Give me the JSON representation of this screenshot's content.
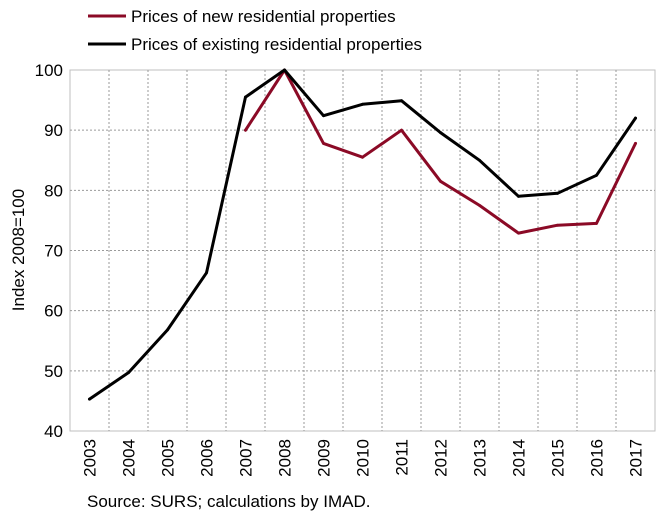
{
  "chart_data": {
    "type": "line",
    "x": [
      "2003",
      "2004",
      "2005",
      "2006",
      "2007",
      "2008",
      "2009",
      "2010",
      "2011",
      "2012",
      "2013",
      "2014",
      "2015",
      "2016",
      "2017"
    ],
    "series": [
      {
        "name": "Prices of new residential properties",
        "color": "#8b0a26",
        "values": [
          null,
          null,
          null,
          null,
          90.0,
          100.0,
          87.8,
          85.5,
          90.0,
          81.5,
          77.5,
          72.9,
          74.2,
          74.5,
          87.8
        ]
      },
      {
        "name": "Prices of existing residential properties",
        "color": "#000000",
        "values": [
          45.3,
          49.7,
          56.8,
          66.3,
          95.5,
          100.0,
          92.4,
          94.3,
          94.9,
          89.6,
          85.0,
          79.0,
          79.5,
          82.5,
          92.0
        ]
      }
    ],
    "ylabel": "Index 2008=100",
    "ylim": [
      40,
      100
    ],
    "yticks": [
      40,
      50,
      60,
      70,
      80,
      90,
      100
    ],
    "grid": true,
    "legend_position": "top"
  },
  "source_note": "Source: SURS; calculations by IMAD."
}
